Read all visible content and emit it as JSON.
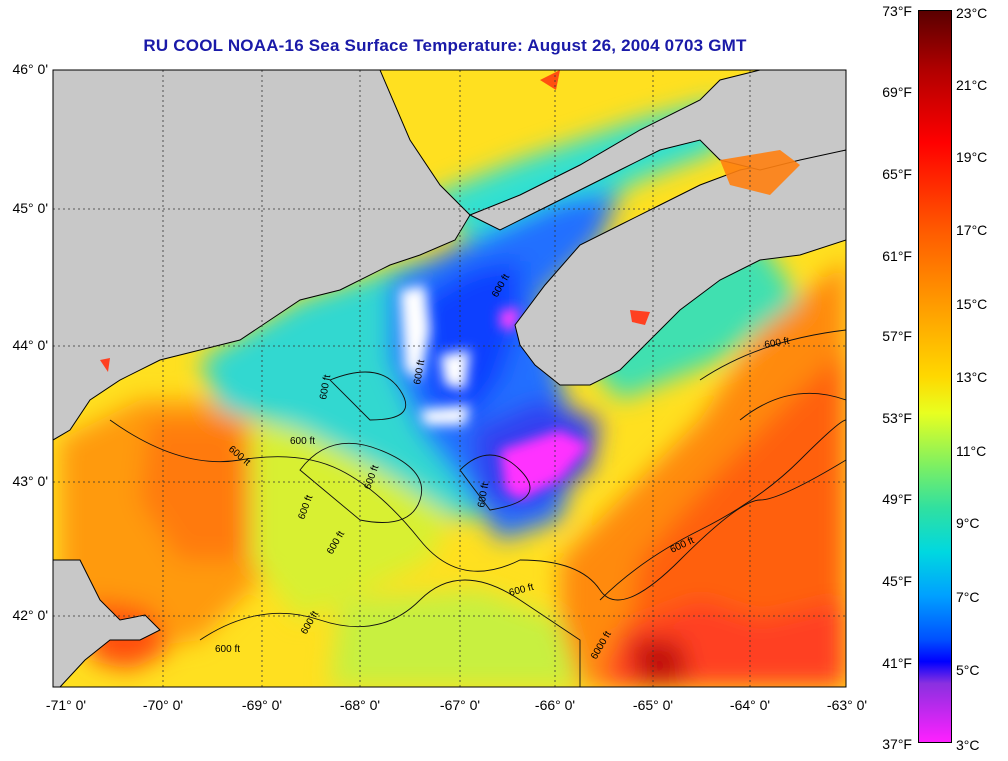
{
  "title": "RU COOL  NOAA-16  Sea Surface Temperature:  August 26, 2004 0703 GMT",
  "latitude_labels": [
    "46° 0'",
    "45° 0'",
    "44° 0'",
    "43° 0'",
    "42° 0'"
  ],
  "longitude_labels": [
    "-71° 0'",
    "-70° 0'",
    "-69° 0'",
    "-68° 0'",
    "-67° 0'",
    "-66° 0'",
    "-65° 0'",
    "-64° 0'",
    "-63° 0'"
  ],
  "colorbar": {
    "fahrenheit_labels": [
      "73°F",
      "69°F",
      "65°F",
      "61°F",
      "57°F",
      "53°F",
      "49°F",
      "45°F",
      "41°F",
      "37°F"
    ],
    "celsius_labels": [
      "23°C",
      "21°C",
      "19°C",
      "17°C",
      "15°C",
      "13°C",
      "11°C",
      "9°C",
      "7°C",
      "5°C",
      "3°C"
    ]
  },
  "contour_labels": [
    "600 ft",
    "600 ft",
    "600 ft",
    "600 ft",
    "600 ft",
    "600 ft",
    "600 ft",
    "600 ft",
    "600 ft",
    "600 ft",
    "600 ft",
    "600 ft",
    "600 ft",
    "600 ft",
    "6000 ft"
  ],
  "colors": {
    "land": "#c8c8c8",
    "title": "#1a1aa8"
  }
}
